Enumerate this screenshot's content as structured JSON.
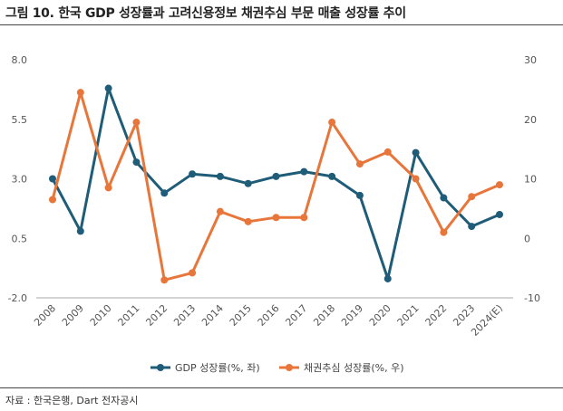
{
  "title": "그림 10. 한국 GDP 성장률과 고려신용정보 채권추심 부문 매출 성장률 추이",
  "source": "자료 : 한국은행, Dart 전자공시",
  "chart_data": {
    "type": "line",
    "categories": [
      "2008",
      "2009",
      "2010",
      "2011",
      "2012",
      "2013",
      "2014",
      "2015",
      "2016",
      "2017",
      "2018",
      "2019",
      "2020",
      "2021",
      "2022",
      "2023",
      "2024(E)"
    ],
    "y_left": {
      "min": -2.0,
      "max": 8.0,
      "ticks": [
        "8.0",
        "5.5",
        "3.0",
        "0.5",
        "-2.0"
      ],
      "tick_values": [
        8.0,
        5.5,
        3.0,
        0.5,
        -2.0
      ]
    },
    "y_right": {
      "min": -10,
      "max": 30,
      "ticks": [
        "30",
        "20",
        "10",
        "0",
        "-10"
      ],
      "tick_values": [
        30,
        20,
        10,
        0,
        -10
      ]
    },
    "series": [
      {
        "name": "GDP 성장률(%, 좌)",
        "axis": "left",
        "color": "#1f5c78",
        "values": [
          3.0,
          0.8,
          6.8,
          3.7,
          2.4,
          3.2,
          3.1,
          2.8,
          3.1,
          3.3,
          3.1,
          2.3,
          -1.2,
          4.1,
          2.2,
          1.0,
          1.5
        ]
      },
      {
        "name": "채권추심 성장률(%, 우)",
        "axis": "right",
        "color": "#e8763a",
        "values": [
          6.5,
          24.5,
          8.5,
          19.5,
          -7.0,
          -5.8,
          4.5,
          2.8,
          3.5,
          3.5,
          19.5,
          12.5,
          14.5,
          10.0,
          1.0,
          7.0,
          9.0
        ]
      }
    ],
    "legend_position": "bottom-center",
    "grid": false
  }
}
